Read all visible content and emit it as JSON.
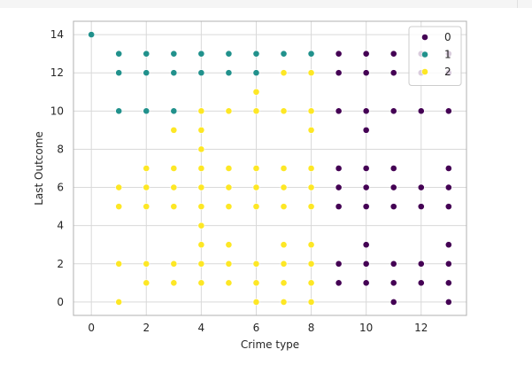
{
  "chart_data": {
    "type": "scatter",
    "title": "",
    "xlabel": "Crime type",
    "ylabel": "Last Outcome",
    "xlim": [
      -0.65,
      13.65
    ],
    "ylim": [
      -0.7,
      14.7
    ],
    "xticks": [
      0,
      2,
      4,
      6,
      8,
      10,
      12
    ],
    "yticks": [
      0,
      2,
      4,
      6,
      8,
      10,
      12,
      14
    ],
    "grid": true,
    "legend": {
      "placement": "top-right",
      "entries": [
        "0",
        "1",
        "2"
      ]
    },
    "colors": {
      "0": "#440154",
      "1": "#21918c",
      "2": "#fde725",
      "grid": "#d9d9d9",
      "axes": "#b0b0b0",
      "text": "#262626"
    },
    "series": [
      {
        "name": "0",
        "points": [
          [
            9,
            13
          ],
          [
            10,
            13
          ],
          [
            11,
            13
          ],
          [
            12,
            13
          ],
          [
            13,
            13
          ],
          [
            9,
            12
          ],
          [
            10,
            12
          ],
          [
            11,
            12
          ],
          [
            12,
            12
          ],
          [
            13,
            12
          ],
          [
            9,
            10
          ],
          [
            10,
            10
          ],
          [
            11,
            10
          ],
          [
            12,
            10
          ],
          [
            13,
            10
          ],
          [
            10,
            9
          ],
          [
            9,
            7
          ],
          [
            10,
            7
          ],
          [
            11,
            7
          ],
          [
            13,
            7
          ],
          [
            9,
            6
          ],
          [
            10,
            6
          ],
          [
            11,
            6
          ],
          [
            12,
            6
          ],
          [
            13,
            6
          ],
          [
            9,
            5
          ],
          [
            10,
            5
          ],
          [
            11,
            5
          ],
          [
            12,
            5
          ],
          [
            13,
            5
          ],
          [
            10,
            3
          ],
          [
            13,
            3
          ],
          [
            9,
            2
          ],
          [
            10,
            2
          ],
          [
            11,
            2
          ],
          [
            12,
            2
          ],
          [
            13,
            2
          ],
          [
            9,
            1
          ],
          [
            10,
            1
          ],
          [
            11,
            1
          ],
          [
            12,
            1
          ],
          [
            13,
            1
          ],
          [
            11,
            0
          ],
          [
            13,
            0
          ]
        ]
      },
      {
        "name": "1",
        "points": [
          [
            0,
            14
          ],
          [
            1,
            13
          ],
          [
            2,
            13
          ],
          [
            3,
            13
          ],
          [
            4,
            13
          ],
          [
            5,
            13
          ],
          [
            6,
            13
          ],
          [
            7,
            13
          ],
          [
            8,
            13
          ],
          [
            1,
            12
          ],
          [
            2,
            12
          ],
          [
            3,
            12
          ],
          [
            4,
            12
          ],
          [
            5,
            12
          ],
          [
            6,
            12
          ],
          [
            1,
            10
          ],
          [
            2,
            10
          ],
          [
            3,
            10
          ]
        ]
      },
      {
        "name": "2",
        "points": [
          [
            7,
            12
          ],
          [
            8,
            12
          ],
          [
            6,
            11
          ],
          [
            4,
            10
          ],
          [
            5,
            10
          ],
          [
            6,
            10
          ],
          [
            7,
            10
          ],
          [
            8,
            10
          ],
          [
            3,
            9
          ],
          [
            4,
            9
          ],
          [
            8,
            9
          ],
          [
            4,
            8
          ],
          [
            2,
            7
          ],
          [
            3,
            7
          ],
          [
            4,
            7
          ],
          [
            5,
            7
          ],
          [
            6,
            7
          ],
          [
            7,
            7
          ],
          [
            8,
            7
          ],
          [
            1,
            6
          ],
          [
            2,
            6
          ],
          [
            3,
            6
          ],
          [
            4,
            6
          ],
          [
            5,
            6
          ],
          [
            6,
            6
          ],
          [
            7,
            6
          ],
          [
            8,
            6
          ],
          [
            1,
            5
          ],
          [
            2,
            5
          ],
          [
            3,
            5
          ],
          [
            4,
            5
          ],
          [
            5,
            5
          ],
          [
            6,
            5
          ],
          [
            7,
            5
          ],
          [
            8,
            5
          ],
          [
            4,
            4
          ],
          [
            4,
            3
          ],
          [
            5,
            3
          ],
          [
            7,
            3
          ],
          [
            8,
            3
          ],
          [
            1,
            2
          ],
          [
            2,
            2
          ],
          [
            3,
            2
          ],
          [
            4,
            2
          ],
          [
            5,
            2
          ],
          [
            6,
            2
          ],
          [
            7,
            2
          ],
          [
            8,
            2
          ],
          [
            2,
            1
          ],
          [
            3,
            1
          ],
          [
            4,
            1
          ],
          [
            5,
            1
          ],
          [
            6,
            1
          ],
          [
            7,
            1
          ],
          [
            8,
            1
          ],
          [
            1,
            0
          ],
          [
            6,
            0
          ],
          [
            7,
            0
          ],
          [
            8,
            0
          ]
        ]
      }
    ]
  }
}
